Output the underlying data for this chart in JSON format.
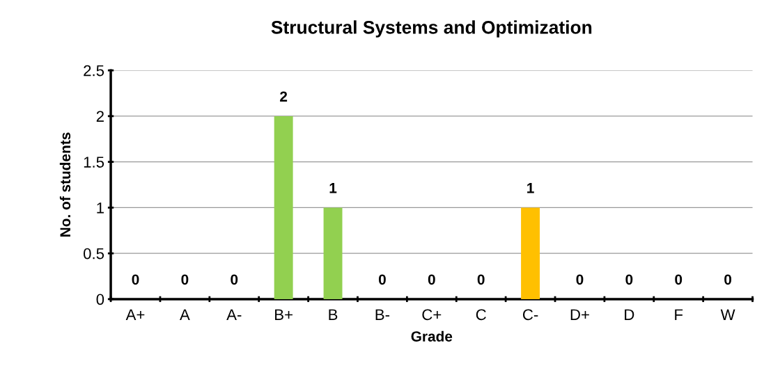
{
  "chart_data": {
    "type": "bar",
    "title": "Structural Systems and Optimization",
    "xlabel": "Grade",
    "ylabel": "No. of students",
    "categories": [
      "A+",
      "A",
      "A-",
      "B+",
      "B",
      "B-",
      "C+",
      "C",
      "C-",
      "D+",
      "D",
      "F",
      "W"
    ],
    "values": [
      0,
      0,
      0,
      2,
      1,
      0,
      0,
      0,
      1,
      0,
      0,
      0,
      0
    ],
    "colors": [
      "#92d050",
      "#92d050",
      "#92d050",
      "#92d050",
      "#92d050",
      "#92d050",
      "#ffc000",
      "#ffc000",
      "#ffc000",
      "#ff0000",
      "#ff0000",
      "#ff0000",
      "#ff0000"
    ],
    "ylim": [
      0,
      2.5
    ],
    "yticks": [
      0,
      0.5,
      1,
      1.5,
      2,
      2.5
    ],
    "grid": "y",
    "data_labels": true
  }
}
